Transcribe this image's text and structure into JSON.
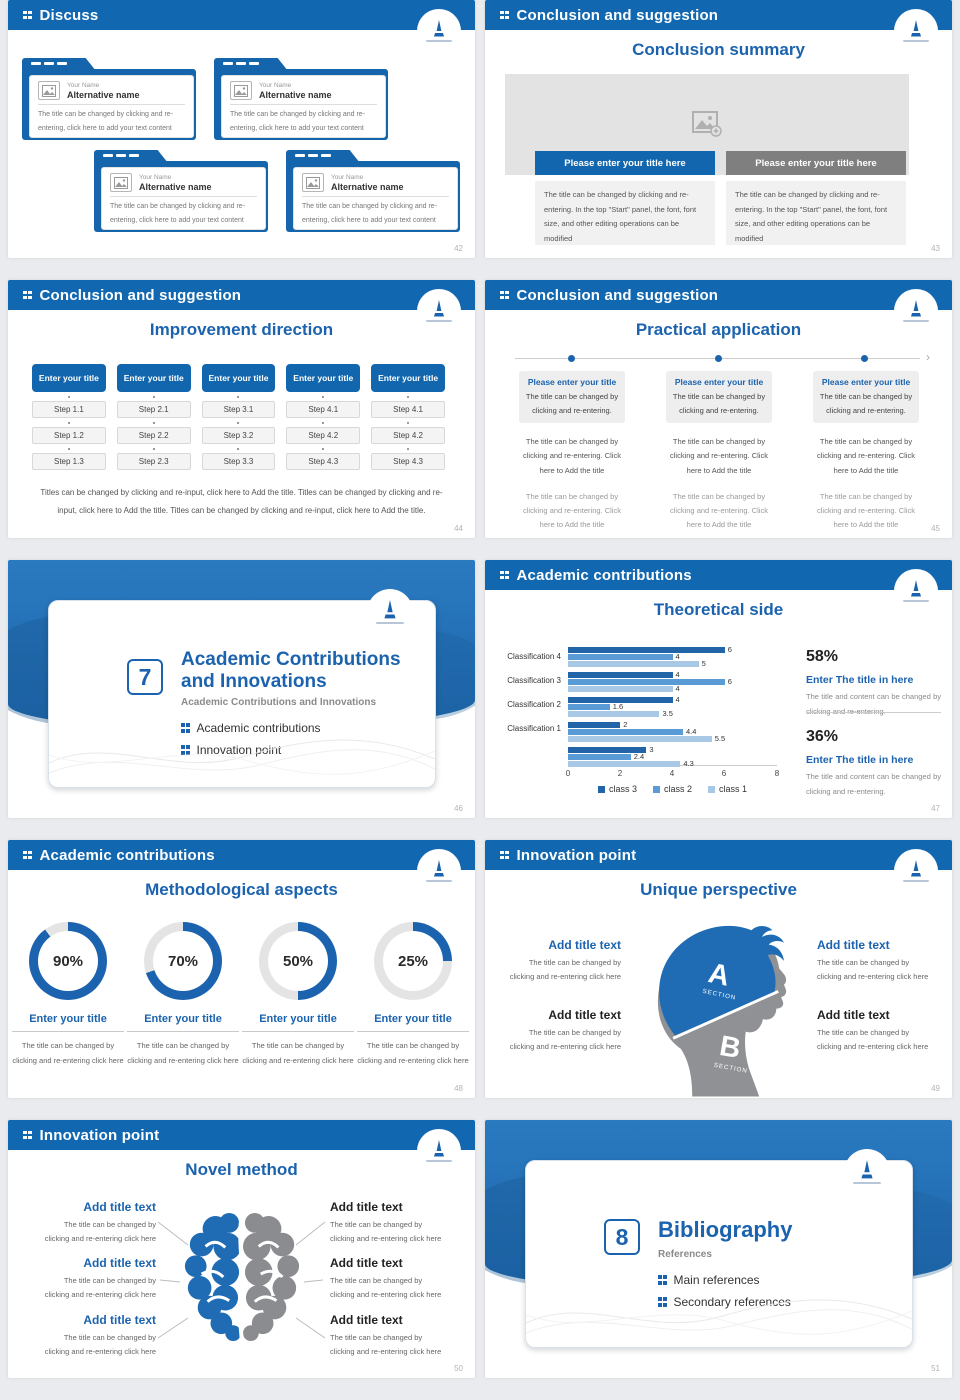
{
  "theme": {
    "header_blue": "#1268b0",
    "title_blue": "#1b63ae",
    "section_blue": "#1f6cb4",
    "button_gray": "#7f7f7f",
    "panel_gray": "#f1f1f1",
    "bar_dark": "#2165a8",
    "bar_mid": "#5b9bd5",
    "bar_light": "#a9c8e6"
  },
  "icons": {
    "header_bullet": "grid-squares-icon",
    "image_placeholder": "picture-plus-icon",
    "chevron": "double-chevron-down-icon",
    "timeline_arrow": "arrow-right-icon",
    "logo": "university-crest-icon"
  },
  "slides": [
    {
      "header": "Discuss",
      "page_number": "42",
      "card": {
        "name": "Your Name",
        "title": "Alternative name",
        "body": "The title can be changed by clicking and re-entering, click here to add your text content"
      }
    },
    {
      "header": "Conclusion and suggestion",
      "title": "Conclusion summary",
      "page_number": "43",
      "button_primary": "Please enter your title here",
      "button_secondary": "Please enter your title here",
      "body": "The title can be changed by clicking and re-entering. In the top \"Start\" panel, the font, font size, and other editing operations can be modified"
    },
    {
      "header": "Conclusion and suggestion",
      "title": "Improvement direction",
      "page_number": "44",
      "button": "Enter your title",
      "columns": [
        {
          "steps": [
            "Step 1.1",
            "Step 1.2",
            "Step 1.3"
          ]
        },
        {
          "steps": [
            "Step 2.1",
            "Step 2.2",
            "Step 2.3"
          ]
        },
        {
          "steps": [
            "Step 3.1",
            "Step 3.2",
            "Step 3.3"
          ]
        },
        {
          "steps": [
            "Step 4.1",
            "Step 4.2",
            "Step 4.3"
          ]
        },
        {
          "steps": [
            "Step 4.1",
            "Step 4.2",
            "Step 4.3"
          ]
        }
      ],
      "footer": "Titles can be changed by clicking and re-input, click here to Add the title. Titles can be changed by clicking and re-input, click here to Add the title. Titles can be changed by clicking and re-input, click here to Add the title."
    },
    {
      "header": "Conclusion and suggestion",
      "title": "Practical application",
      "page_number": "45",
      "column": {
        "title": "Please enter your title",
        "subtitle": "The title can be changed by clicking and re-entering.",
        "mid_text": "The title can be changed by clicking and re-entering. Click here to Add the title",
        "bottom_text": "The title can be changed by clicking and re-entering. Click here to Add the title"
      }
    },
    {
      "section_number": "7",
      "title": "Academic Contributions and Innovations",
      "subtitle": "Academic Contributions and Innovations",
      "bullets": [
        "Academic contributions",
        "Innovation point"
      ],
      "page_number": "46"
    },
    {
      "header": "Academic contributions",
      "title": "Theoretical side",
      "page_number": "47",
      "chart_data": {
        "type": "bar",
        "orientation": "horizontal",
        "title": "Theoretical side",
        "categories": [
          "Classification 4",
          "Classification 3",
          "Classification 2",
          "Classification 1",
          ""
        ],
        "series": [
          {
            "name": "class 3",
            "color": "#2165a8",
            "values": [
              6,
              4,
              4,
              2,
              3
            ]
          },
          {
            "name": "class 2",
            "color": "#5b9bd5",
            "values": [
              4,
              6,
              1.6,
              4.4,
              2.4
            ]
          },
          {
            "name": "class 1",
            "color": "#a9c8e6",
            "values": [
              5,
              4,
              3.5,
              5.5,
              4.3
            ]
          }
        ],
        "xlim": [
          0,
          8
        ],
        "ticks": [
          "0",
          "2",
          "4",
          "6",
          "8"
        ],
        "legend_position": "bottom",
        "grid": false
      },
      "stats": [
        {
          "value": "58%",
          "title": "Enter The title in here",
          "body": "The title and content can be changed by clicking and re-entering."
        },
        {
          "value": "36%",
          "title": "Enter The title in here",
          "body": "The title and content can be changed by clicking and re-entering."
        }
      ]
    },
    {
      "header": "Academic contributions",
      "title": "Methodological aspects",
      "page_number": "48",
      "item_title": "Enter your title",
      "item_body": "The title can be changed by clicking and re-entering click here",
      "percents": [
        {
          "label": "90%",
          "value": 90
        },
        {
          "label": "70%",
          "value": 70
        },
        {
          "label": "50%",
          "value": 50
        },
        {
          "label": "25%",
          "value": 25
        }
      ]
    },
    {
      "header": "Innovation point",
      "title": "Unique perspective",
      "page_number": "49",
      "block_title": "Add title text",
      "block_body": "The title can be changed by clicking and re-entering click here",
      "section_a": "A",
      "section_b": "B",
      "section_word": "SECTION"
    },
    {
      "header": "Innovation point",
      "title": "Novel method",
      "page_number": "50",
      "block_title": "Add title text",
      "block_body": "The title can be changed by clicking and re-entering click here"
    },
    {
      "section_number": "8",
      "title": "Bibliography",
      "subtitle": "References",
      "bullets": [
        "Main references",
        "Secondary references"
      ],
      "page_number": "51"
    }
  ]
}
